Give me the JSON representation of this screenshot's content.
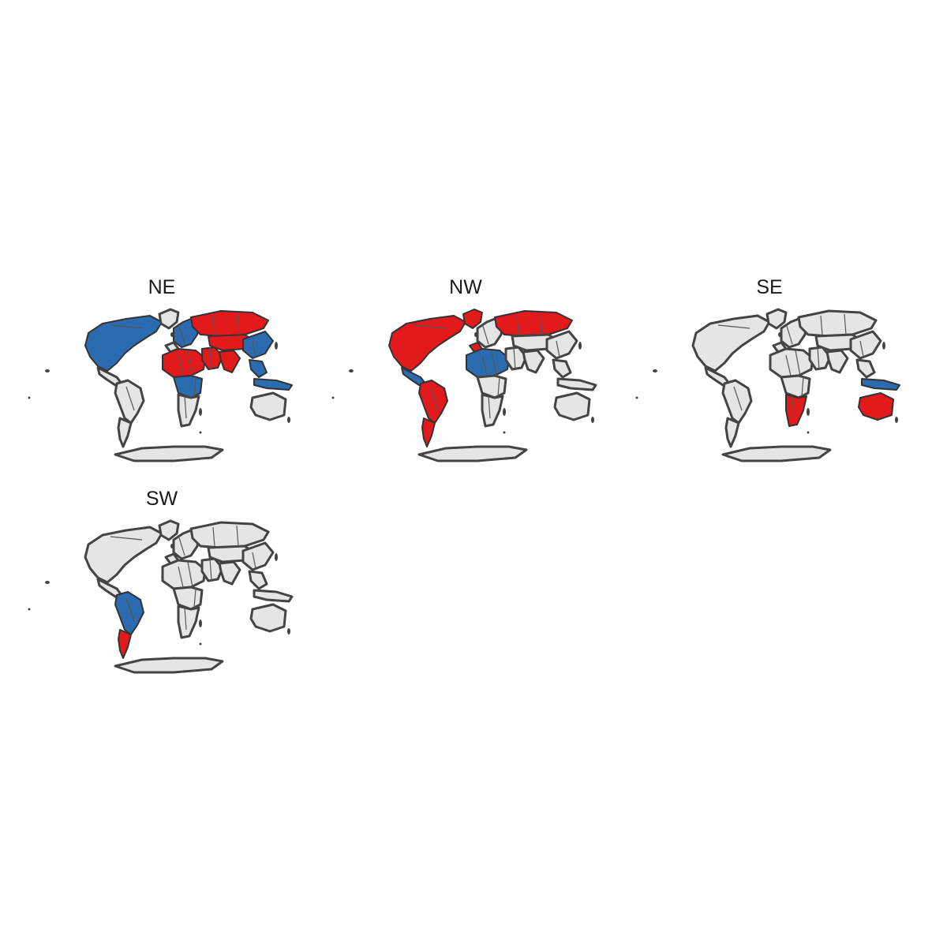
{
  "colors": {
    "background": "#ffffff",
    "land_fill": "#e5e5e5",
    "land_outline": "#444444",
    "red": "#e31a1c",
    "blue": "#2b6cb0"
  },
  "panels": [
    {
      "title": "NE",
      "regions": {
        "north_america": "blue",
        "greenland": "none",
        "central_america": "none",
        "south_america": "none",
        "south_cone": "none",
        "europe": "blue",
        "iberia": "none",
        "north_africa": "red",
        "central_africa": "blue",
        "southern_africa": "none",
        "middle_east": "red",
        "russia": "red",
        "central_asia": "red",
        "india": "red",
        "east_asia": "blue",
        "southeast_asia": "blue",
        "indonesia": "blue",
        "australia": "none",
        "antarctica": "none"
      }
    },
    {
      "title": "NW",
      "regions": {
        "north_america": "red",
        "greenland": "red",
        "central_america": "blue",
        "south_america": "red",
        "south_cone": "red",
        "europe": "none",
        "iberia": "red",
        "north_africa": "blue",
        "central_africa": "none",
        "southern_africa": "none",
        "middle_east": "none",
        "russia": "red",
        "central_asia": "none",
        "india": "none",
        "east_asia": "none",
        "southeast_asia": "none",
        "indonesia": "none",
        "australia": "none",
        "antarctica": "none"
      }
    },
    {
      "title": "SE",
      "regions": {
        "north_america": "none",
        "greenland": "none",
        "central_america": "none",
        "south_america": "none",
        "south_cone": "none",
        "europe": "none",
        "iberia": "none",
        "north_africa": "none",
        "central_africa": "none",
        "southern_africa": "red",
        "middle_east": "none",
        "russia": "none",
        "central_asia": "none",
        "india": "none",
        "east_asia": "none",
        "southeast_asia": "none",
        "indonesia": "blue",
        "australia": "red",
        "antarctica": "none"
      }
    },
    {
      "title": "SW",
      "regions": {
        "north_america": "none",
        "greenland": "none",
        "central_america": "none",
        "south_america": "blue",
        "south_cone": "red",
        "europe": "none",
        "iberia": "none",
        "north_africa": "none",
        "central_africa": "none",
        "southern_africa": "none",
        "middle_east": "none",
        "russia": "none",
        "central_asia": "none",
        "india": "none",
        "east_asia": "none",
        "southeast_asia": "none",
        "indonesia": "none",
        "australia": "none",
        "antarctica": "none"
      }
    }
  ]
}
